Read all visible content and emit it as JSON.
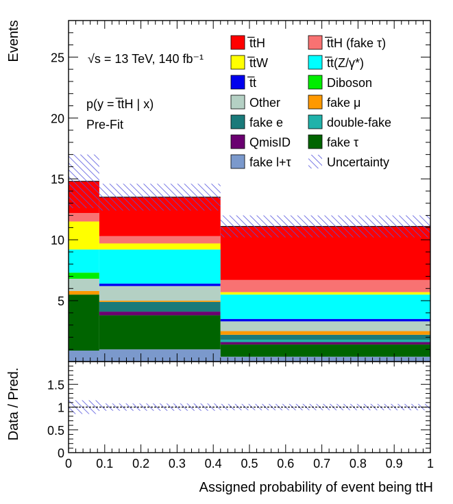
{
  "chart_data": {
    "type": "bar",
    "stacked": true,
    "xlabel": "Assigned probability of event being ttH",
    "ylabel_top": "Events",
    "ylabel_bottom": "Data / Pred.",
    "bins": [
      [
        0.0,
        0.085
      ],
      [
        0.085,
        0.42
      ],
      [
        0.42,
        1.0
      ]
    ],
    "xlim": [
      0,
      1
    ],
    "ylim_top": [
      0,
      28
    ],
    "ylim_bottom": [
      0,
      2
    ],
    "x_ticks": [
      "0",
      "0.1",
      "0.2",
      "0.3",
      "0.4",
      "0.5",
      "0.6",
      "0.7",
      "0.8",
      "0.9",
      "1"
    ],
    "y_ticks_top": [
      "5",
      "10",
      "15",
      "20",
      "25"
    ],
    "y_ticks_bottom": [
      "0",
      "0.5",
      "1",
      "1.5"
    ],
    "annotations": {
      "energy": "√s = 13 TeV, 140 fb⁻¹",
      "selection": "p(y = t̅tH | x)",
      "fit_state": "Pre-Fit"
    },
    "series": [
      {
        "name": "fake l+τ",
        "color": "#7b99cc",
        "values": [
          0.9,
          1.0,
          0.4
        ]
      },
      {
        "name": "fake τ",
        "color": "#006400",
        "values": [
          4.6,
          2.8,
          1.0
        ]
      },
      {
        "name": "QmisID",
        "color": "#6a0070",
        "values": [
          0.0,
          0.3,
          0.2
        ]
      },
      {
        "name": "double-fake",
        "color": "#20b2aa",
        "values": [
          0.0,
          0.0,
          0.2
        ]
      },
      {
        "name": "fake e",
        "color": "#1a7a7a",
        "values": [
          0.0,
          0.8,
          0.4
        ]
      },
      {
        "name": "fake μ",
        "color": "#ff9900",
        "values": [
          0.3,
          0.1,
          0.3
        ]
      },
      {
        "name": "Other",
        "color": "#b4d0c4",
        "values": [
          1.0,
          1.2,
          0.8
        ]
      },
      {
        "name": "t̅t",
        "color": "#0000ee",
        "values": [
          0.0,
          0.2,
          0.2
        ]
      },
      {
        "name": "Diboson",
        "color": "#00ee00",
        "values": [
          0.5,
          0.0,
          0.0
        ]
      },
      {
        "name": "t̅t(Z/γ*)",
        "color": "#00ffff",
        "values": [
          1.9,
          2.8,
          2.0
        ]
      },
      {
        "name": "t̅tW",
        "color": "#ffff00",
        "values": [
          2.3,
          0.5,
          0.2
        ]
      },
      {
        "name": "t̅tH (fake τ)",
        "color": "#f87272",
        "values": [
          0.7,
          0.6,
          1.0
        ]
      },
      {
        "name": "t̅tH",
        "color": "#ff0000",
        "values": [
          2.6,
          3.2,
          4.4
        ]
      }
    ],
    "totals": [
      14.8,
      13.5,
      11.1
    ],
    "uncertainty": {
      "name": "Uncertainty",
      "color": "#5555dd",
      "values": [
        2.2,
        1.1,
        0.9
      ]
    },
    "ratio": {
      "values": [
        1.0,
        1.0,
        1.0
      ],
      "uncertainty": [
        0.15,
        0.08,
        0.07
      ]
    },
    "legend_order": [
      "t̅tH",
      "t̅tH (fake τ)",
      "t̅tW",
      "t̅t(Z/γ*)",
      "t̅t",
      "Diboson",
      "Other",
      "fake μ",
      "fake e",
      "double-fake",
      "QmisID",
      "fake τ",
      "fake l+τ",
      "Uncertainty"
    ],
    "legend_placement": "top-right"
  }
}
